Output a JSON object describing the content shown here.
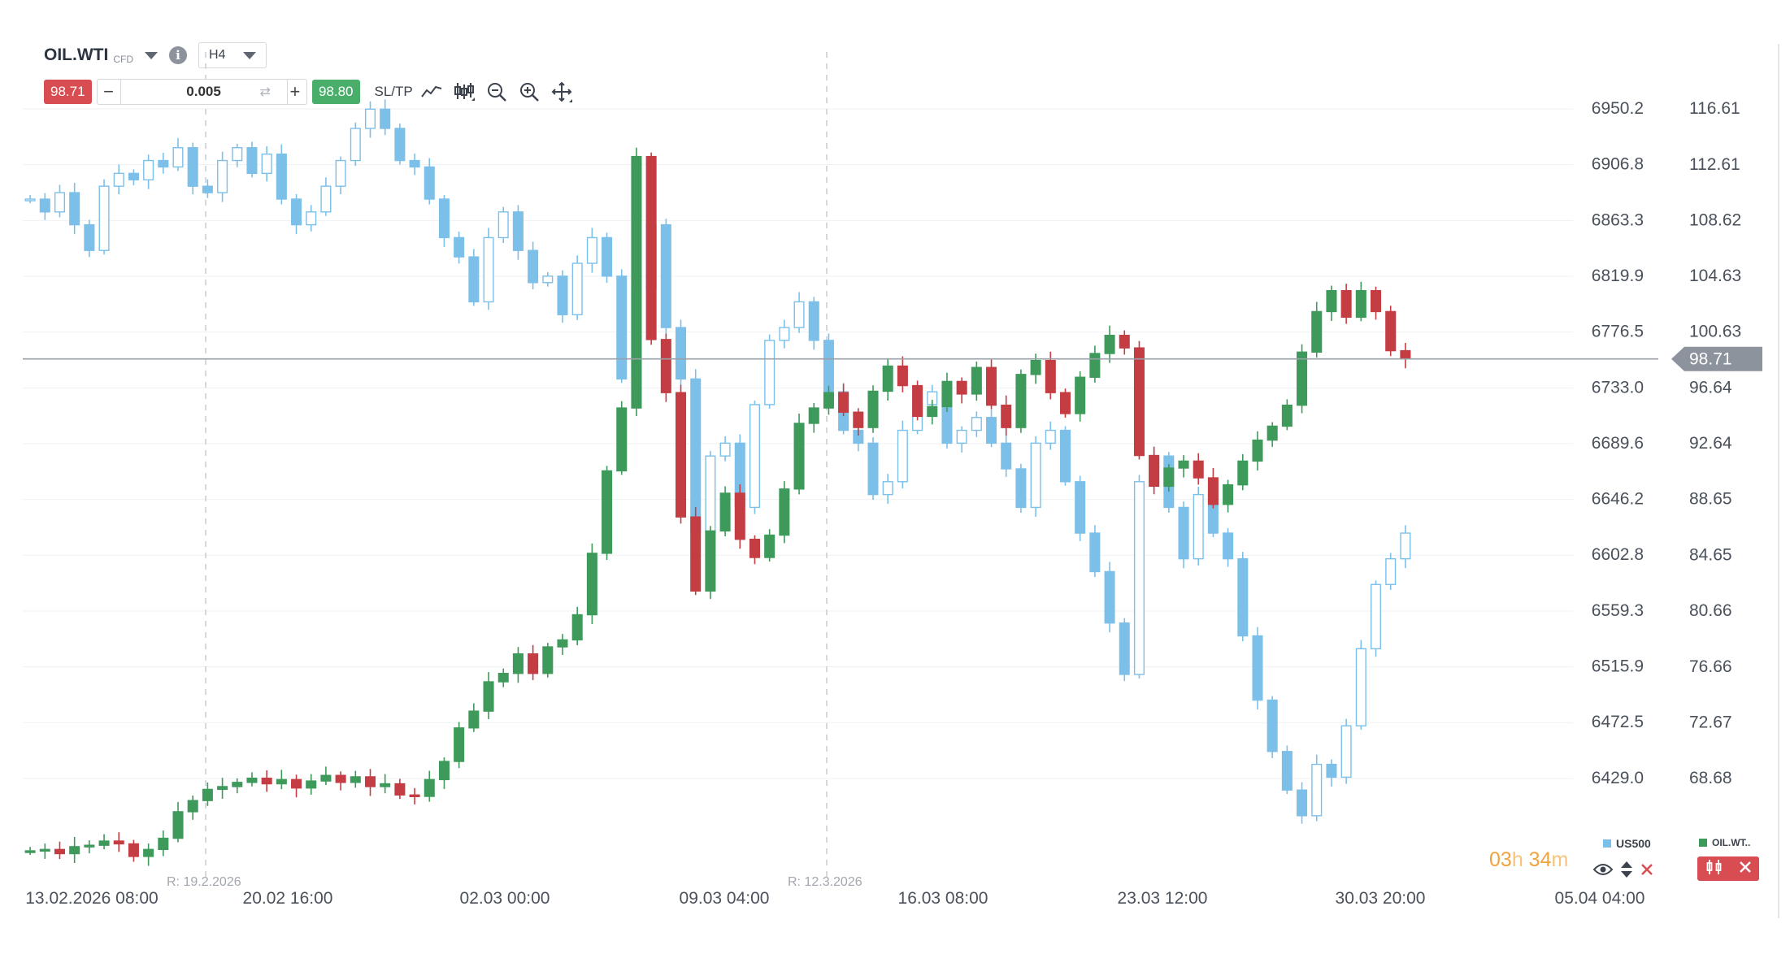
{
  "header": {
    "symbol": "OIL.WTI",
    "symbol_type": "CFD",
    "timeframe": "H4"
  },
  "trade": {
    "sell_price": "98.71",
    "buy_price": "98.80",
    "volume": "0.005",
    "sltp_label": "SL/TP"
  },
  "icons": [
    "chevron-down-icon",
    "info-icon",
    "line-chart-icon",
    "candlestick-icon",
    "zoom-out-icon",
    "zoom-in-icon",
    "crosshair-move-icon",
    "swap-icon",
    "eye-icon",
    "sort-icon",
    "close-icon"
  ],
  "colors": {
    "up": "#3e9a5a",
    "down": "#c43d43",
    "us500": "#7cc0ea",
    "price_tag": "#8d939c",
    "timer": "#f0a43c"
  },
  "legend": {
    "us500": "US500",
    "oil": "OIL.WT.."
  },
  "timer": {
    "hours": "03",
    "h": "h",
    "minutes": "34",
    "m": "m"
  },
  "chart_data": {
    "type": "candlestick",
    "timeframe": "H4",
    "x_ticks": [
      "13.02.2026 08:00",
      "20.02 16:00",
      "02.03 00:00",
      "09.03 04:00",
      "16.03 08:00",
      "23.03 12:00",
      "30.03 20:00",
      "05.04 04:00"
    ],
    "range_markers": [
      "R: 19.2.2026",
      "R: 12.3.2026"
    ],
    "y_axis_left": {
      "series": "US500",
      "ticks": [
        "6950.2",
        "6906.8",
        "6863.3",
        "6819.9",
        "6776.5",
        "6733.0",
        "6689.6",
        "6646.2",
        "6602.8",
        "6559.3",
        "6515.9",
        "6472.5",
        "6429.0"
      ],
      "range": [
        6429.0,
        6950.2
      ]
    },
    "y_axis_right": {
      "series": "OIL.WTI",
      "ticks": [
        "116.61",
        "112.61",
        "108.62",
        "104.63",
        "100.63",
        "96.64",
        "92.64",
        "88.65",
        "84.65",
        "80.66",
        "76.66",
        "72.67",
        "68.68"
      ],
      "range": [
        68.68,
        116.61
      ]
    },
    "current_price": "98.71",
    "series": [
      {
        "name": "OIL.WTI",
        "closes": [
          63.5,
          63.6,
          63.3,
          63.8,
          63.9,
          64.2,
          64.0,
          63.1,
          63.6,
          64.4,
          66.3,
          67.1,
          67.9,
          68.1,
          68.4,
          68.7,
          68.3,
          68.6,
          68.0,
          68.5,
          68.9,
          68.4,
          68.8,
          68.1,
          68.3,
          67.5,
          67.4,
          68.6,
          69.9,
          72.3,
          73.5,
          75.6,
          76.2,
          77.6,
          76.2,
          78.1,
          78.6,
          80.4,
          84.8,
          90.7,
          95.2,
          113.2,
          100.1,
          96.3,
          87.4,
          82.1,
          86.4,
          89.1,
          85.8,
          84.5,
          86.1,
          89.4,
          94.1,
          95.2,
          96.3,
          94.9,
          93.8,
          96.4,
          98.2,
          96.8,
          94.6,
          95.3,
          97.1,
          96.2,
          98.1,
          95.4,
          93.8,
          97.6,
          98.6,
          96.3,
          94.8,
          97.4,
          99.1,
          100.4,
          99.5,
          91.8,
          89.6,
          90.9,
          91.4,
          90.2,
          88.3,
          89.7,
          91.4,
          92.9,
          93.9,
          95.4,
          99.2,
          102.1,
          103.6,
          101.7,
          103.6,
          102.1,
          99.3,
          98.71
        ]
      },
      {
        "name": "US500",
        "closes": [
          6880,
          6870,
          6885,
          6860,
          6840,
          6890,
          6900,
          6895,
          6910,
          6905,
          6920,
          6890,
          6885,
          6910,
          6920,
          6900,
          6915,
          6880,
          6860,
          6870,
          6890,
          6910,
          6935,
          6950,
          6935,
          6910,
          6905,
          6880,
          6850,
          6835,
          6800,
          6850,
          6870,
          6840,
          6815,
          6820,
          6790,
          6830,
          6850,
          6820,
          6740,
          6810,
          6860,
          6780,
          6740,
          6620,
          6680,
          6690,
          6640,
          6720,
          6770,
          6780,
          6800,
          6770,
          6730,
          6700,
          6690,
          6650,
          6660,
          6700,
          6720,
          6730,
          6690,
          6700,
          6710,
          6690,
          6670,
          6640,
          6690,
          6700,
          6660,
          6620,
          6590,
          6550,
          6510,
          6660,
          6680,
          6640,
          6600,
          6650,
          6620,
          6600,
          6540,
          6490,
          6450,
          6420,
          6400,
          6440,
          6430,
          6470,
          6530,
          6580,
          6600,
          6620
        ]
      }
    ]
  }
}
